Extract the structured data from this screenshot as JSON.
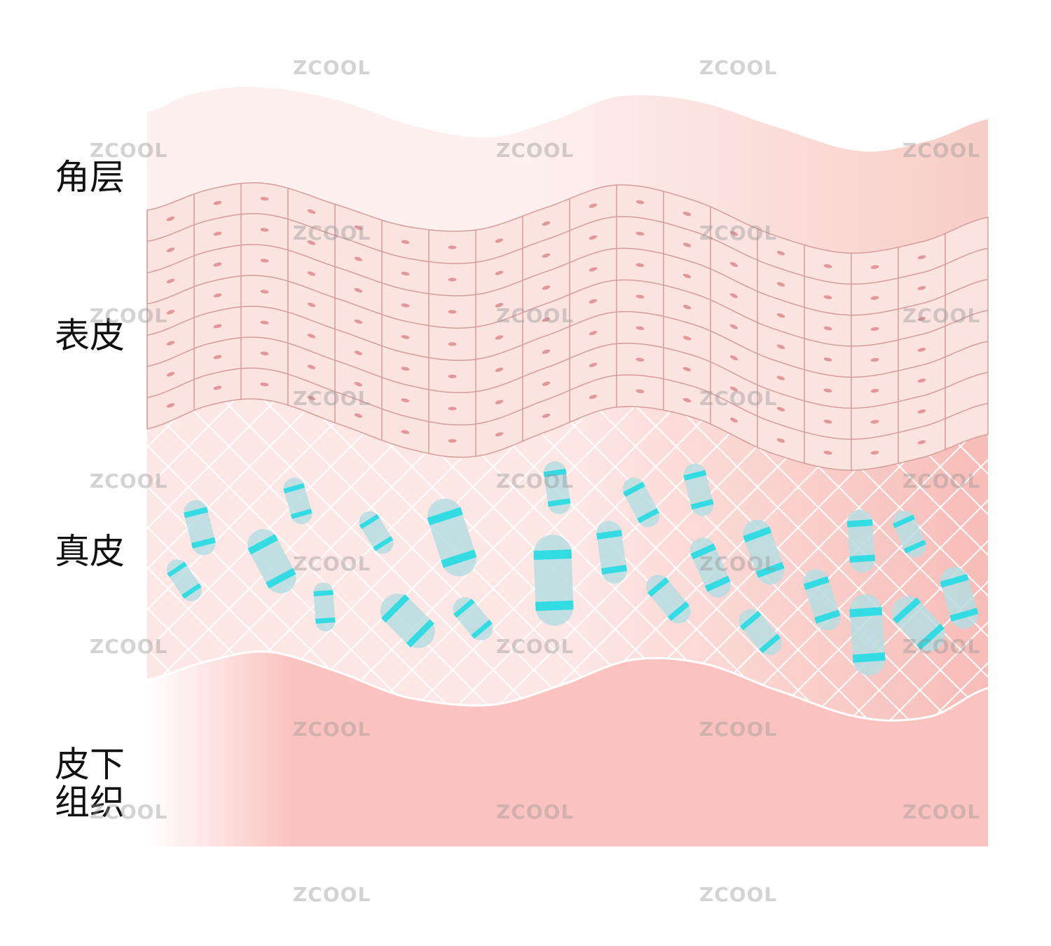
{
  "layers": {
    "stratum_corneum": "角层",
    "epidermis": "表皮",
    "dermis": "真皮",
    "subcutaneous_line1": "皮下",
    "subcutaneous_line2": "组织"
  },
  "watermark": "ZCOOL",
  "colors": {
    "corneum_light": "#fdf0ef",
    "corneum_dark": "#f8cdc7",
    "epidermis_fill": "#fbe3e0",
    "cell_line": "#d69c99",
    "cell_nucleus": "#e2979a",
    "dermis_light": "#fde7e5",
    "dermis_dark": "#f7bcb7",
    "mesh_line": "#ffffff",
    "subcutis": "#fbc3c0",
    "fiber_body": "#b6dde2",
    "fiber_band": "#33dbe2"
  }
}
